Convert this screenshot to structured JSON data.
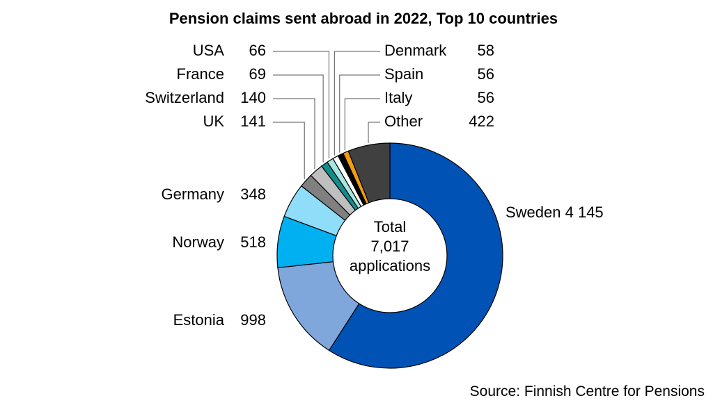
{
  "chart_data": {
    "type": "pie",
    "donut": true,
    "title": "Pension claims sent abroad in 2022, Top 10 countries",
    "center_label": [
      "Total",
      "7,017",
      "applications"
    ],
    "source": "Source: Finnish Centre for Pensions",
    "total": 7017,
    "slices": [
      {
        "label": "Sweden",
        "value": 4145,
        "value_text": "4 145",
        "color": "#0052B4"
      },
      {
        "label": "Estonia",
        "value": 998,
        "value_text": "998",
        "color": "#7FA7DB"
      },
      {
        "label": "Norway",
        "value": 518,
        "value_text": "518",
        "color": "#00B0F0"
      },
      {
        "label": "Germany",
        "value": 348,
        "value_text": "348",
        "color": "#8FDDF8"
      },
      {
        "label": "UK",
        "value": 141,
        "value_text": "141",
        "color": "#808080"
      },
      {
        "label": "Switzerland",
        "value": 140,
        "value_text": "140",
        "color": "#BFBFBF"
      },
      {
        "label": "France",
        "value": 69,
        "value_text": "69",
        "color": "#158C8C"
      },
      {
        "label": "USA",
        "value": 66,
        "value_text": "66",
        "color": "#A8E4E0"
      },
      {
        "label": "Denmark",
        "value": 58,
        "value_text": "58",
        "color": "#FFFFFF"
      },
      {
        "label": "Spain",
        "value": 56,
        "value_text": "56",
        "color": "#000000"
      },
      {
        "label": "Italy",
        "value": 56,
        "value_text": "56",
        "color": "#F39C12"
      },
      {
        "label": "Other",
        "value": 422,
        "value_text": "422",
        "color": "#404040"
      }
    ]
  }
}
